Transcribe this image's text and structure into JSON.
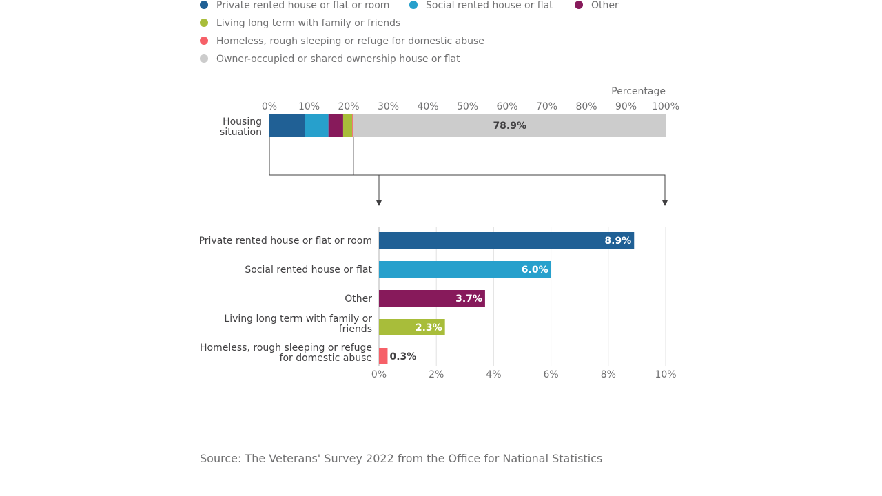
{
  "legend": [
    {
      "label": "Private rented house or flat or room",
      "color": "#206095"
    },
    {
      "label": "Social rented house or flat",
      "color": "#27a0cc"
    },
    {
      "label": "Other",
      "color": "#871a5b"
    },
    {
      "label": "Living long term with family or friends",
      "color": "#a8bd3a"
    },
    {
      "label": "Homeless, rough sleeping or refuge for domestic abuse",
      "color": "#f66068"
    },
    {
      "label": "Owner-occupied or shared ownership house or flat",
      "color": "#cccccc"
    }
  ],
  "source": "Source: The Veterans' Survey 2022 from the Office for National Statistics",
  "chart_data": [
    {
      "type": "bar",
      "orientation": "horizontal",
      "stacked": true,
      "xlabel": "Percentage",
      "xlim": [
        0,
        100
      ],
      "xticks": [
        "0%",
        "10%",
        "20%",
        "30%",
        "40%",
        "50%",
        "60%",
        "70%",
        "80%",
        "90%",
        "100%"
      ],
      "categories": [
        "Housing situation"
      ],
      "category_lines": [
        "Housing",
        "situation"
      ],
      "series": [
        {
          "name": "Private rented house or flat or room",
          "values": [
            8.9
          ],
          "color": "#206095"
        },
        {
          "name": "Social rented house or flat",
          "values": [
            6.0
          ],
          "color": "#27a0cc"
        },
        {
          "name": "Other",
          "values": [
            3.7
          ],
          "color": "#871a5b"
        },
        {
          "name": "Living long term with family or friends",
          "values": [
            2.3
          ],
          "color": "#a8bd3a"
        },
        {
          "name": "Homeless, rough sleeping or refuge for domestic abuse",
          "values": [
            0.3
          ],
          "color": "#f66068"
        },
        {
          "name": "Owner-occupied or shared ownership house or flat",
          "values": [
            78.9
          ],
          "color": "#cccccc",
          "label": "78.9%"
        }
      ]
    },
    {
      "type": "bar",
      "orientation": "horizontal",
      "xlim": [
        0,
        10
      ],
      "xticks": [
        "0%",
        "2%",
        "4%",
        "6%",
        "8%",
        "10%"
      ],
      "grid": true,
      "categories": [
        {
          "lines": [
            "Private rented house or flat or room"
          ]
        },
        {
          "lines": [
            "Social rented house or flat"
          ]
        },
        {
          "lines": [
            "Other"
          ]
        },
        {
          "lines": [
            "Living long term with family or",
            "friends"
          ]
        },
        {
          "lines": [
            "Homeless, rough sleeping or refuge",
            "for domestic abuse"
          ]
        }
      ],
      "values": [
        8.9,
        6.0,
        3.7,
        2.3,
        0.3
      ],
      "labels": [
        "8.9%",
        "6.0%",
        "3.7%",
        "2.3%",
        "0.3%"
      ],
      "colors": [
        "#206095",
        "#27a0cc",
        "#871a5b",
        "#a8bd3a",
        "#f66068"
      ]
    }
  ]
}
